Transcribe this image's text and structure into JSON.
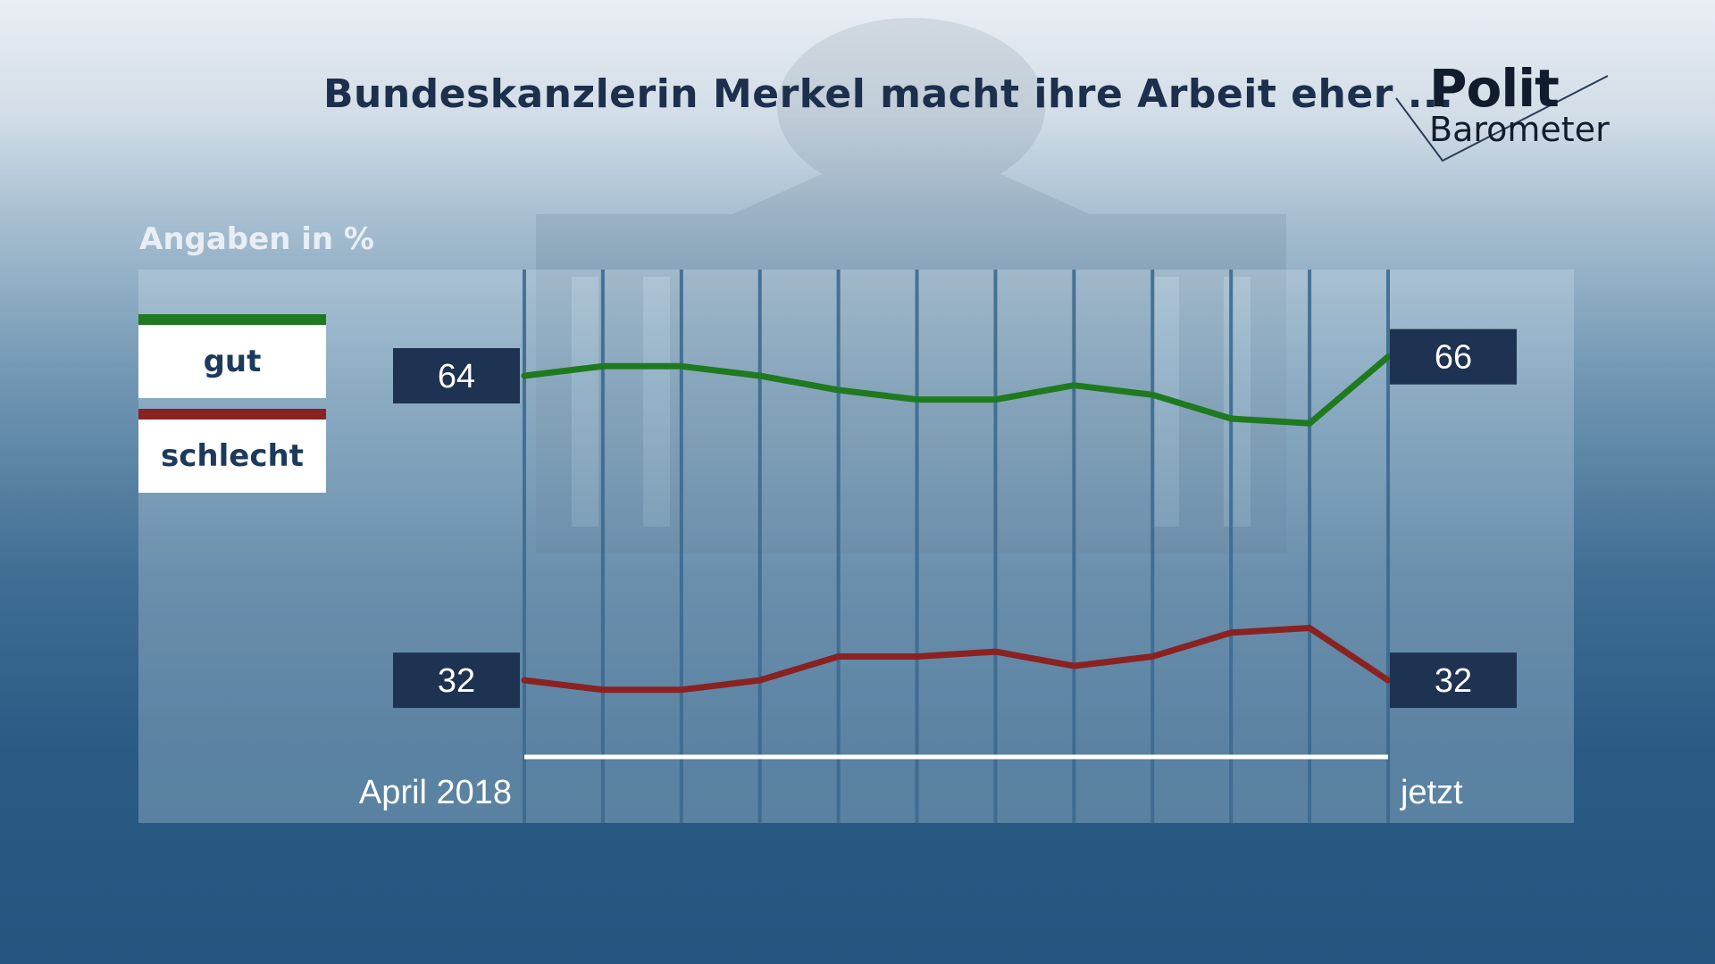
{
  "title": "Bundeskanzlerin Merkel macht ihre Arbeit eher ...",
  "logo": {
    "line1": "Polit",
    "line2": "Barometer"
  },
  "units_label": "Angaben in %",
  "colors": {
    "gut": "#1f7a1f",
    "schlecht": "#8a2222",
    "label_bg": "#1e3252"
  },
  "chart_data": {
    "type": "line",
    "title": "Bundeskanzlerin Merkel macht ihre Arbeit eher ...",
    "ylabel": "Angaben in %",
    "x": [
      "April 2018",
      "",
      "",
      "",
      "",
      "",
      "",
      "",
      "",
      "",
      "",
      "jetzt"
    ],
    "x_start_label": "April 2018",
    "x_end_label": "jetzt",
    "ylim": [
      20,
      75
    ],
    "legend": "left",
    "series": [
      {
        "name": "gut",
        "color": "#1f7a1f",
        "values": [
          64,
          65,
          65,
          64,
          62.5,
          61.5,
          61.5,
          63,
          62,
          59.5,
          59,
          66
        ],
        "start_label": "64",
        "end_label": "66"
      },
      {
        "name": "schlecht",
        "color": "#8a2222",
        "values": [
          32,
          31,
          31,
          32,
          34.5,
          34.5,
          35,
          33.5,
          34.5,
          37,
          37.5,
          32
        ],
        "start_label": "32",
        "end_label": "32"
      }
    ]
  }
}
